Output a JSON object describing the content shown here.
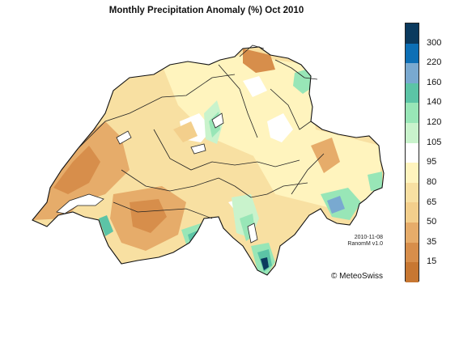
{
  "title": "Monthly Precipitation Anomaly (%) Oct 2010",
  "legend": {
    "classes": [
      {
        "color": "#0b3a5e"
      },
      {
        "color": "#0d6fb5"
      },
      {
        "color": "#79a9d0"
      },
      {
        "color": "#5cc4a6"
      },
      {
        "color": "#98e6b7"
      },
      {
        "color": "#c9f3cc"
      },
      {
        "color": "#ffffff"
      },
      {
        "color": "#fff4be"
      },
      {
        "color": "#f8e0a2"
      },
      {
        "color": "#f3cf8c"
      },
      {
        "color": "#e6ac6a"
      },
      {
        "color": "#d78e4b"
      },
      {
        "color": "#c77732"
      }
    ],
    "labels": [
      "300",
      "220",
      "160",
      "140",
      "120",
      "105",
      "95",
      "80",
      "65",
      "50",
      "35",
      "15"
    ]
  },
  "stamp": {
    "date": "2010-11-08",
    "version": "RanomM v1.0"
  },
  "copyright": "© MeteoSwiss"
}
